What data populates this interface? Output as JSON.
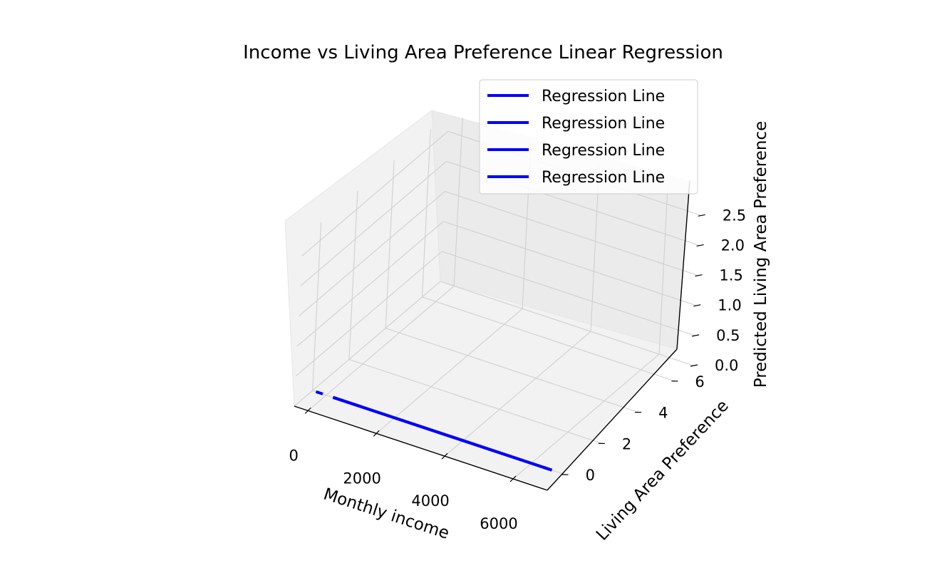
{
  "chart_data": {
    "type": "line",
    "projection": "3d",
    "title": "Income vs Living Area Preference Linear Regression",
    "xlabel": "Monthly income",
    "ylabel": "Living Area Preference",
    "zlabel": "Predicted Living Area Preference",
    "xlim": [
      -400,
      7000
    ],
    "ylim": [
      -1,
      7
    ],
    "zlim": [
      0,
      2.8
    ],
    "x_ticks": [
      0,
      2000,
      4000,
      6000
    ],
    "y_ticks": [
      0,
      2,
      4,
      6
    ],
    "z_ticks": [
      0.0,
      0.5,
      1.0,
      1.5,
      2.0,
      2.5
    ],
    "x_tick_labels": [
      "0",
      "2000",
      "4000",
      "6000"
    ],
    "y_tick_labels": [
      "0",
      "2",
      "4",
      "6"
    ],
    "z_tick_labels": [
      "0.0",
      "0.5",
      "1.0",
      "1.5",
      "2.0",
      "2.5"
    ],
    "grid": true,
    "legend_position": "top-right",
    "series": [
      {
        "name": "Regression Line",
        "color": "#0000ff",
        "points": [
          [
            -300,
            0,
            0
          ],
          [
            -100,
            0,
            0
          ]
        ]
      },
      {
        "name": "Regression Line",
        "color": "#0000ff",
        "points": [
          [
            200,
            0,
            0
          ],
          [
            6600,
            0,
            0
          ]
        ]
      },
      {
        "name": "Regression Line",
        "color": "#0000ff",
        "points": [
          [
            200,
            0,
            0
          ],
          [
            6600,
            0,
            0
          ]
        ]
      },
      {
        "name": "Regression Line",
        "color": "#0000ff",
        "points": [
          [
            200,
            0,
            0
          ],
          [
            6600,
            0,
            0
          ]
        ]
      }
    ]
  }
}
